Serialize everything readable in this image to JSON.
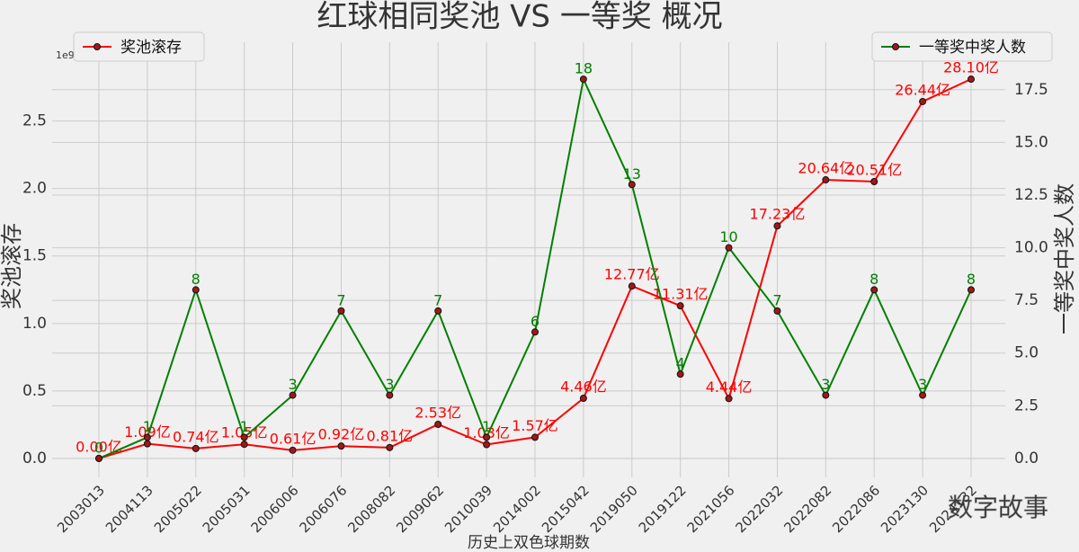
{
  "chart_data": {
    "type": "line",
    "title": "红球相同奖池 VS 一等奖 概况",
    "x_label": "历史上双色球期数",
    "y_label": "奖池滚存",
    "y2_label": "一等奖中奖人数",
    "y_offset_label": "1e9",
    "watermark": "数字故事",
    "categories": [
      "2003013",
      "2004113",
      "2005022",
      "2005031",
      "2006006",
      "2006076",
      "2008082",
      "2009062",
      "2010039",
      "2014002",
      "2015042",
      "2019050",
      "2019122",
      "2021056",
      "2022032",
      "2022082",
      "2022086",
      "2023130",
      "2024132"
    ],
    "series": [
      {
        "name": "奖池滚存",
        "color": "#ff0000",
        "legend": "upper left",
        "values": [
          0.0,
          0.109,
          0.074,
          0.105,
          0.061,
          0.092,
          0.081,
          0.253,
          0.103,
          0.157,
          0.446,
          1.277,
          1.131,
          0.444,
          1.723,
          2.064,
          2.051,
          2.644,
          2.81
        ],
        "value_labels": [
          "0.00亿",
          "1.09亿",
          "0.74亿",
          "1.05亿",
          "0.61亿",
          "0.92亿",
          "0.81亿",
          "2.53亿",
          "1.03亿",
          "1.57亿",
          "4.46亿",
          "12.77亿",
          "11.31亿",
          "4.44亿",
          "17.23亿",
          "20.64亿",
          "20.51亿",
          "26.44亿",
          "28.10亿"
        ]
      },
      {
        "name": "一等奖中奖人数",
        "color": "#008000",
        "axis": "y2",
        "legend": "upper right",
        "values": [
          0,
          1,
          8,
          1,
          3,
          7,
          3,
          7,
          1,
          6,
          18,
          13,
          4,
          10,
          7,
          3,
          8,
          3,
          8
        ]
      }
    ],
    "marker_color": "#a01818",
    "ylim": [
      -0.14,
      2.95
    ],
    "yticks": [
      {
        "value": 0,
        "label": "0.0"
      },
      0.5,
      {
        "value": 1,
        "label": "1.0"
      },
      1.5,
      {
        "value": 2,
        "label": "2.0"
      },
      2.5
    ],
    "y2lim": [
      -0.9,
      18.9
    ],
    "y2ticks": [
      {
        "value": 0,
        "label": "0.0"
      },
      2.5,
      {
        "value": 5,
        "label": "5.0"
      },
      7.5,
      {
        "value": 10,
        "label": "10.0"
      },
      12.5,
      {
        "value": 15,
        "label": "15.0"
      },
      17.5
    ],
    "grid": true
  }
}
